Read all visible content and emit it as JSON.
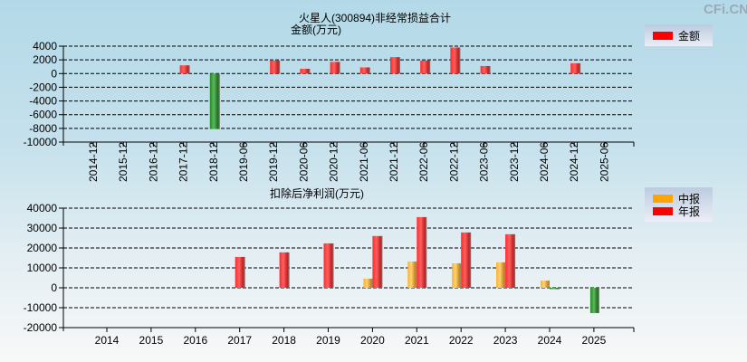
{
  "watermark": "CFi.CN",
  "colors": {
    "annual": "#ff0000",
    "interim": "#ffa500",
    "negative": "#2e8b2e",
    "grid": "#000000"
  },
  "chart_data": [
    {
      "type": "bar",
      "title": "火星人(300894)非经常损益合计",
      "ylabel": "金额(万元)",
      "xlabel": "",
      "legend": {
        "placement": "top-right",
        "entries": [
          "金额"
        ]
      },
      "ylim": [
        -10000,
        4000
      ],
      "yticks": [
        4000,
        2000,
        0,
        -2000,
        -4000,
        -6000,
        -8000,
        -10000
      ],
      "grid": true,
      "categories": [
        "2014-12",
        "2015-12",
        "2016-12",
        "2017-12",
        "2018-12",
        "2019-06",
        "2019-12",
        "2020-06",
        "2020-12",
        "2021-06",
        "2021-12",
        "2022-06",
        "2022-12",
        "2023-06",
        "2023-12",
        "2024-06",
        "2024-12",
        "2025-06"
      ],
      "series": [
        {
          "name": "金额",
          "values": [
            null,
            null,
            null,
            1200,
            -8100,
            null,
            1900,
            700,
            1700,
            900,
            2400,
            1900,
            3800,
            1100,
            null,
            null,
            1500,
            null
          ]
        }
      ]
    },
    {
      "type": "bar",
      "title": "扣除后净利润(万元)",
      "xlabel": "",
      "ylabel": "",
      "legend": {
        "placement": "top-right",
        "entries": [
          "中报",
          "年报"
        ]
      },
      "ylim": [
        -20000,
        40000
      ],
      "yticks": [
        40000,
        30000,
        20000,
        10000,
        0,
        -10000,
        -20000
      ],
      "grid": true,
      "categories": [
        "2014",
        "2015",
        "2016",
        "2017",
        "2018",
        "2019",
        "2020",
        "2021",
        "2022",
        "2023",
        "2024",
        "2025"
      ],
      "series": [
        {
          "name": "中报",
          "values": [
            null,
            null,
            null,
            null,
            null,
            null,
            4600,
            13200,
            12300,
            12800,
            3600,
            -12700
          ]
        },
        {
          "name": "年报",
          "values": [
            null,
            null,
            null,
            15500,
            17800,
            22300,
            26000,
            35500,
            27800,
            26900,
            -500,
            null
          ]
        }
      ]
    }
  ]
}
